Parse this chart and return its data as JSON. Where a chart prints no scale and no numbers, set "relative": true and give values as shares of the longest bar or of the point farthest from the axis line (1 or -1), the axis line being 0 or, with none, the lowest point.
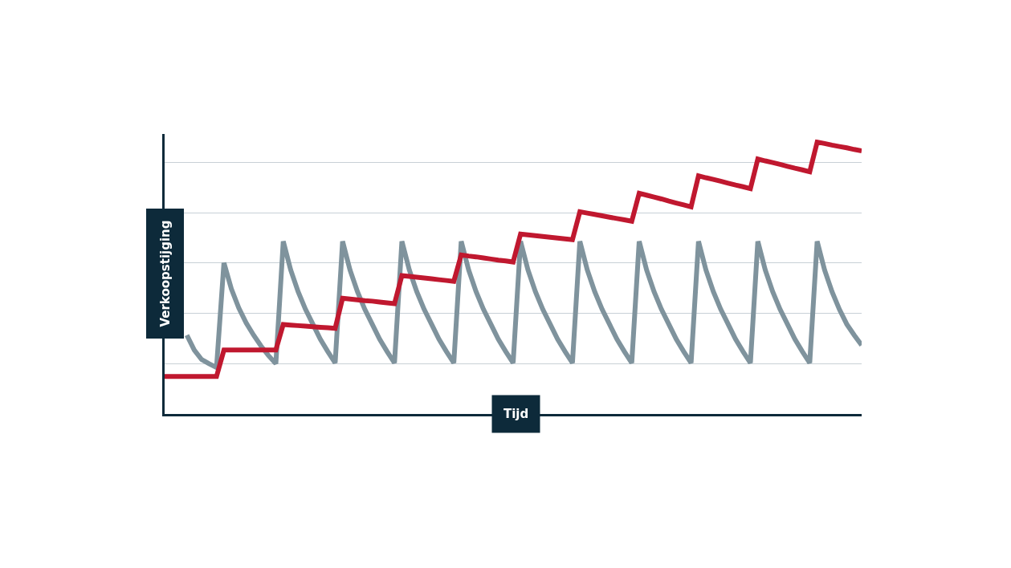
{
  "chart_data": {
    "type": "line",
    "relative": true,
    "xlabel": "Tijd",
    "ylabel": "Verkoopstijging",
    "grid": "y",
    "categories": [
      null,
      null,
      null,
      null,
      null,
      null,
      null,
      null,
      null,
      null,
      null,
      null,
      null,
      null,
      null,
      null,
      null,
      null,
      null,
      null,
      null,
      null,
      null,
      null,
      null,
      null,
      null,
      null,
      null,
      null,
      null,
      null,
      null,
      null,
      null,
      null,
      null,
      null,
      null,
      null,
      null,
      null,
      null,
      null,
      null,
      null,
      null,
      null,
      null,
      null,
      null,
      null,
      null,
      null,
      null,
      null,
      null,
      null,
      null,
      null,
      null,
      null,
      null,
      null,
      null,
      null,
      null,
      null,
      null,
      null,
      null,
      null,
      null,
      null,
      null,
      null,
      null,
      null,
      null,
      null,
      null,
      null,
      null,
      null,
      null,
      null,
      null,
      null,
      null,
      null,
      null,
      null,
      null,
      null,
      null
    ],
    "series": [
      {
        "color": "#7f939d",
        "values": [
          null,
          null,
          null,
          0.29,
          0.235,
          0.2,
          0.185,
          0.171,
          0.556,
          0.46,
          0.39,
          0.335,
          0.29,
          0.25,
          0.215,
          0.185,
          0.635,
          0.53,
          0.45,
          0.385,
          0.33,
          0.275,
          0.23,
          0.188,
          0.635,
          0.53,
          0.45,
          0.385,
          0.33,
          0.275,
          0.23,
          0.188,
          0.635,
          0.53,
          0.45,
          0.385,
          0.33,
          0.275,
          0.23,
          0.188,
          0.635,
          0.53,
          0.45,
          0.385,
          0.33,
          0.275,
          0.23,
          0.188,
          0.635,
          0.53,
          0.45,
          0.385,
          0.33,
          0.275,
          0.23,
          0.188,
          0.635,
          0.53,
          0.45,
          0.385,
          0.33,
          0.275,
          0.23,
          0.188,
          0.635,
          0.53,
          0.45,
          0.385,
          0.33,
          0.275,
          0.23,
          0.188,
          0.635,
          0.53,
          0.45,
          0.385,
          0.33,
          0.275,
          0.23,
          0.188,
          0.635,
          0.53,
          0.45,
          0.385,
          0.33,
          0.275,
          0.23,
          0.188,
          0.635,
          0.53,
          0.45,
          0.385,
          0.33,
          0.29,
          0.253
        ]
      },
      {
        "color": "#c0182f",
        "values": [
          0.138,
          0.138,
          0.138,
          0.138,
          0.138,
          0.138,
          0.138,
          0.138,
          0.235,
          0.235,
          0.235,
          0.235,
          0.235,
          0.235,
          0.235,
          0.235,
          0.329,
          0.327,
          0.325,
          0.323,
          0.321,
          0.319,
          0.317,
          0.315,
          0.426,
          0.423,
          0.42,
          0.417,
          0.415,
          0.412,
          0.409,
          0.406,
          0.509,
          0.506,
          0.503,
          0.5,
          0.497,
          0.494,
          0.491,
          0.488,
          0.585,
          0.581,
          0.578,
          0.574,
          0.57,
          0.566,
          0.563,
          0.559,
          0.662,
          0.659,
          0.656,
          0.653,
          0.65,
          0.647,
          0.644,
          0.641,
          0.744,
          0.739,
          0.734,
          0.729,
          0.724,
          0.719,
          0.714,
          0.709,
          0.812,
          0.805,
          0.798,
          0.791,
          0.783,
          0.776,
          0.769,
          0.762,
          0.876,
          0.869,
          0.863,
          0.856,
          0.849,
          0.842,
          0.836,
          0.829,
          0.938,
          0.931,
          0.925,
          0.918,
          0.911,
          0.904,
          0.898,
          0.891,
          1.0,
          0.995,
          0.989,
          0.984,
          0.979,
          0.973,
          0.968
        ]
      }
    ]
  }
}
